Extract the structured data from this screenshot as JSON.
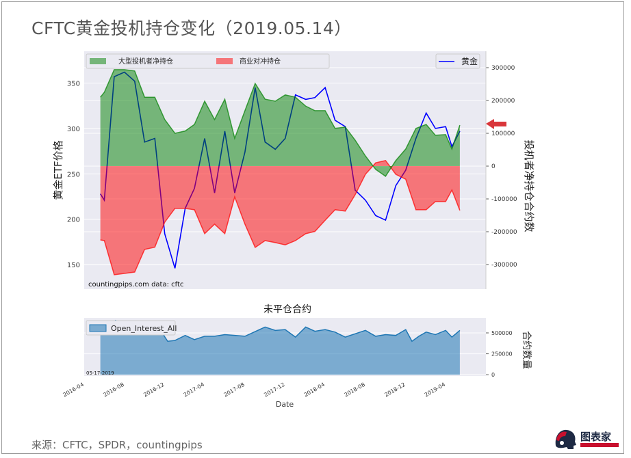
{
  "title": "CFTC黄金投机持仓变化（2019.05.14）",
  "source": "来源：CFTC，SPDR，countingpips",
  "logo_text": "图表家",
  "chart_data": [
    {
      "type": "area",
      "title": "",
      "xlabel": "",
      "ylabel_left": "黄金ETF价格",
      "ylabel_right": "投机者净持仓合约数",
      "ylim_left": [
        123,
        385
      ],
      "ylim_right": [
        -375000,
        350000
      ],
      "yticks_left": [
        150,
        200,
        250,
        300,
        350
      ],
      "yticks_right": [
        -300000,
        -200000,
        -100000,
        0,
        100000,
        200000,
        300000
      ],
      "xlim": [
        "2016-04-01",
        "2019-08-01"
      ],
      "grid": true,
      "annotation": "countingpips.com    data: cftc",
      "legend": {
        "placement": "top",
        "entries": [
          "大型投机者净持仓",
          "商业对冲持仓",
          "黄金"
        ]
      },
      "colors": {
        "spec": "#008000",
        "comm": "#ff0000",
        "gold": "#0000ff",
        "background": "#eaeaf2"
      },
      "dates": [
        "2016-05-20",
        "2016-06-01",
        "2016-07-01",
        "2016-08-01",
        "2016-09-01",
        "2016-10-01",
        "2016-11-01",
        "2016-12-01",
        "2017-01-01",
        "2017-02-01",
        "2017-03-01",
        "2017-04-01",
        "2017-05-01",
        "2017-06-01",
        "2017-07-01",
        "2017-08-01",
        "2017-09-01",
        "2017-10-01",
        "2017-11-01",
        "2017-12-01",
        "2018-01-01",
        "2018-02-01",
        "2018-03-01",
        "2018-04-01",
        "2018-05-01",
        "2018-06-01",
        "2018-07-01",
        "2018-08-01",
        "2018-09-01",
        "2018-10-01",
        "2018-11-01",
        "2018-12-01",
        "2019-01-01",
        "2019-02-01",
        "2019-03-01",
        "2019-04-01",
        "2019-04-20",
        "2019-05-14"
      ],
      "series": [
        {
          "name": "大型投机者净持仓",
          "axis": "right",
          "values": [
            210000,
            225000,
            294000,
            294000,
            290000,
            210000,
            210000,
            142000,
            100000,
            107000,
            127000,
            198000,
            142000,
            204000,
            85000,
            169000,
            252000,
            204000,
            198000,
            217000,
            210000,
            183000,
            169000,
            169000,
            115000,
            119000,
            79000,
            31000,
            -10000,
            -31000,
            17000,
            52000,
            115000,
            127000,
            94000,
            96000,
            52000,
            125000
          ]
        },
        {
          "name": "商业对冲持仓",
          "axis": "right",
          "values": [
            -225000,
            -227000,
            -331000,
            -327000,
            -323000,
            -254000,
            -247000,
            -171000,
            -129000,
            -129000,
            -133000,
            -206000,
            -177000,
            -206000,
            -94000,
            -177000,
            -248000,
            -227000,
            -233000,
            -240000,
            -227000,
            -206000,
            -199000,
            -165000,
            -133000,
            -137000,
            -87000,
            -25000,
            10000,
            17000,
            -25000,
            -40000,
            -133000,
            -133000,
            -108000,
            -108000,
            -73000,
            -135000
          ]
        },
        {
          "name": "黄金",
          "axis": "left",
          "values": [
            228,
            221,
            357,
            362,
            352,
            285,
            289,
            184,
            146,
            212,
            234,
            289,
            229,
            297,
            229,
            274,
            345,
            285,
            277,
            289,
            337,
            332,
            334,
            345,
            309,
            302,
            232,
            221,
            204,
            199,
            237,
            254,
            289,
            317,
            300,
            302,
            280,
            297
          ]
        }
      ]
    },
    {
      "type": "area",
      "title": "未平仓合约",
      "xlabel": "Date",
      "ylabel_right": "合约数量",
      "ylim": [
        -15000,
        680000
      ],
      "yticks": [
        0,
        250000,
        500000
      ],
      "xticks": [
        "2016-04",
        "2016-08",
        "2016-12",
        "2017-04",
        "2017-08",
        "2017-12",
        "2018-04",
        "2018-08",
        "2018-12",
        "2019-04"
      ],
      "annotation": "05-17-2019",
      "grid": true,
      "legend": {
        "placement": "top-left",
        "entries": [
          "Open_Interest_All"
        ]
      },
      "colors": {
        "fill": "#1f77b4"
      },
      "dates": [
        "2016-05-20",
        "2016-06-15",
        "2016-07-05",
        "2016-08-01",
        "2016-09-01",
        "2016-10-01",
        "2016-11-01",
        "2016-11-20",
        "2016-12-10",
        "2017-01-01",
        "2017-02-01",
        "2017-03-01",
        "2017-04-01",
        "2017-05-01",
        "2017-06-01",
        "2017-07-01",
        "2017-08-01",
        "2017-10-01",
        "2017-11-01",
        "2017-12-01",
        "2018-01-01",
        "2018-02-01",
        "2018-03-01",
        "2018-04-01",
        "2018-05-01",
        "2018-06-01",
        "2018-08-01",
        "2018-09-01",
        "2018-10-01",
        "2018-11-01",
        "2018-12-01",
        "2018-12-20",
        "2019-01-10",
        "2019-02-01",
        "2019-03-01",
        "2019-04-01",
        "2019-04-20",
        "2019-05-14"
      ],
      "series": [
        {
          "name": "Open_Interest_All",
          "values": [
            560000,
            600000,
            650000,
            600000,
            570000,
            560000,
            540000,
            520000,
            400000,
            410000,
            470000,
            420000,
            460000,
            460000,
            480000,
            470000,
            460000,
            570000,
            530000,
            540000,
            450000,
            570000,
            520000,
            540000,
            510000,
            450000,
            530000,
            460000,
            480000,
            470000,
            540000,
            400000,
            460000,
            510000,
            480000,
            530000,
            450000,
            530000
          ]
        }
      ]
    }
  ]
}
